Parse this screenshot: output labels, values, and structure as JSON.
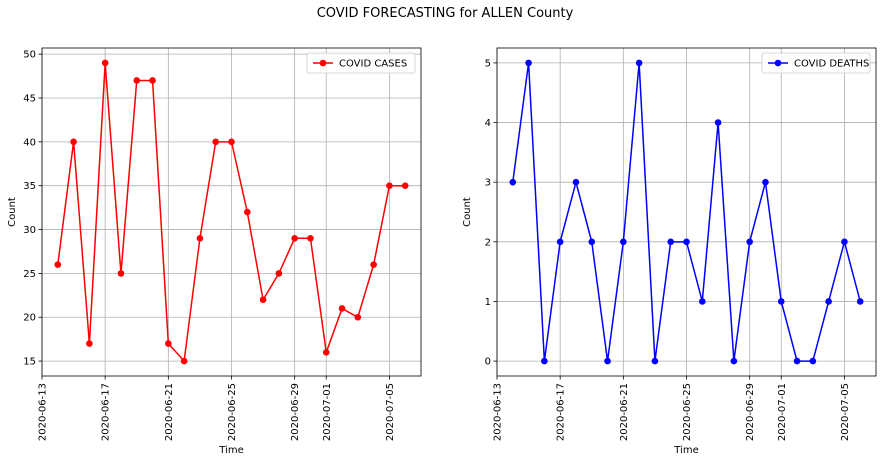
{
  "figure": {
    "title": "COVID FORECASTING for ALLEN County"
  },
  "chart_data": [
    {
      "type": "line",
      "xlabel": "Time",
      "ylabel": "Count",
      "x": [
        "2020-06-14",
        "2020-06-15",
        "2020-06-16",
        "2020-06-17",
        "2020-06-18",
        "2020-06-19",
        "2020-06-20",
        "2020-06-21",
        "2020-06-22",
        "2020-06-23",
        "2020-06-24",
        "2020-06-25",
        "2020-06-26",
        "2020-06-27",
        "2020-06-28",
        "2020-06-29",
        "2020-06-30",
        "2020-07-01",
        "2020-07-02",
        "2020-07-03",
        "2020-07-04",
        "2020-07-05",
        "2020-07-06"
      ],
      "series": [
        {
          "name": "COVID CASES",
          "color": "#ff0000",
          "values": [
            26,
            40,
            17,
            49,
            25,
            47,
            47,
            17,
            15,
            29,
            40,
            40,
            32,
            22,
            25,
            29,
            29,
            16,
            21,
            20,
            26,
            35,
            35
          ]
        }
      ],
      "xlim": [
        "2020-06-13",
        "2020-07-07"
      ],
      "ylim": [
        13.3,
        50.7
      ],
      "xticks": [
        "2020-06-13",
        "2020-06-17",
        "2020-06-21",
        "2020-06-25",
        "2020-06-29",
        "2020-07-01",
        "2020-07-05"
      ],
      "yticks": [
        15,
        20,
        25,
        30,
        35,
        40,
        45,
        50
      ],
      "grid": true,
      "legend": "top-right"
    },
    {
      "type": "line",
      "xlabel": "Time",
      "ylabel": "Count",
      "x": [
        "2020-06-14",
        "2020-06-15",
        "2020-06-16",
        "2020-06-17",
        "2020-06-18",
        "2020-06-19",
        "2020-06-20",
        "2020-06-21",
        "2020-06-22",
        "2020-06-23",
        "2020-06-24",
        "2020-06-25",
        "2020-06-26",
        "2020-06-27",
        "2020-06-28",
        "2020-06-29",
        "2020-06-30",
        "2020-07-01",
        "2020-07-02",
        "2020-07-03",
        "2020-07-04",
        "2020-07-05",
        "2020-07-06"
      ],
      "series": [
        {
          "name": "COVID DEATHS",
          "color": "#0000ff",
          "values": [
            3,
            5,
            0,
            2,
            3,
            2,
            0,
            2,
            5,
            0,
            2,
            2,
            1,
            4,
            0,
            2,
            3,
            1,
            0,
            0,
            1,
            2,
            1
          ]
        }
      ],
      "xlim": [
        "2020-06-13",
        "2020-07-07"
      ],
      "ylim": [
        -0.25,
        5.25
      ],
      "xticks": [
        "2020-06-13",
        "2020-06-17",
        "2020-06-21",
        "2020-06-25",
        "2020-06-29",
        "2020-07-01",
        "2020-07-05"
      ],
      "yticks": [
        0,
        1,
        2,
        3,
        4,
        5
      ],
      "grid": true,
      "legend": "top-right"
    }
  ]
}
